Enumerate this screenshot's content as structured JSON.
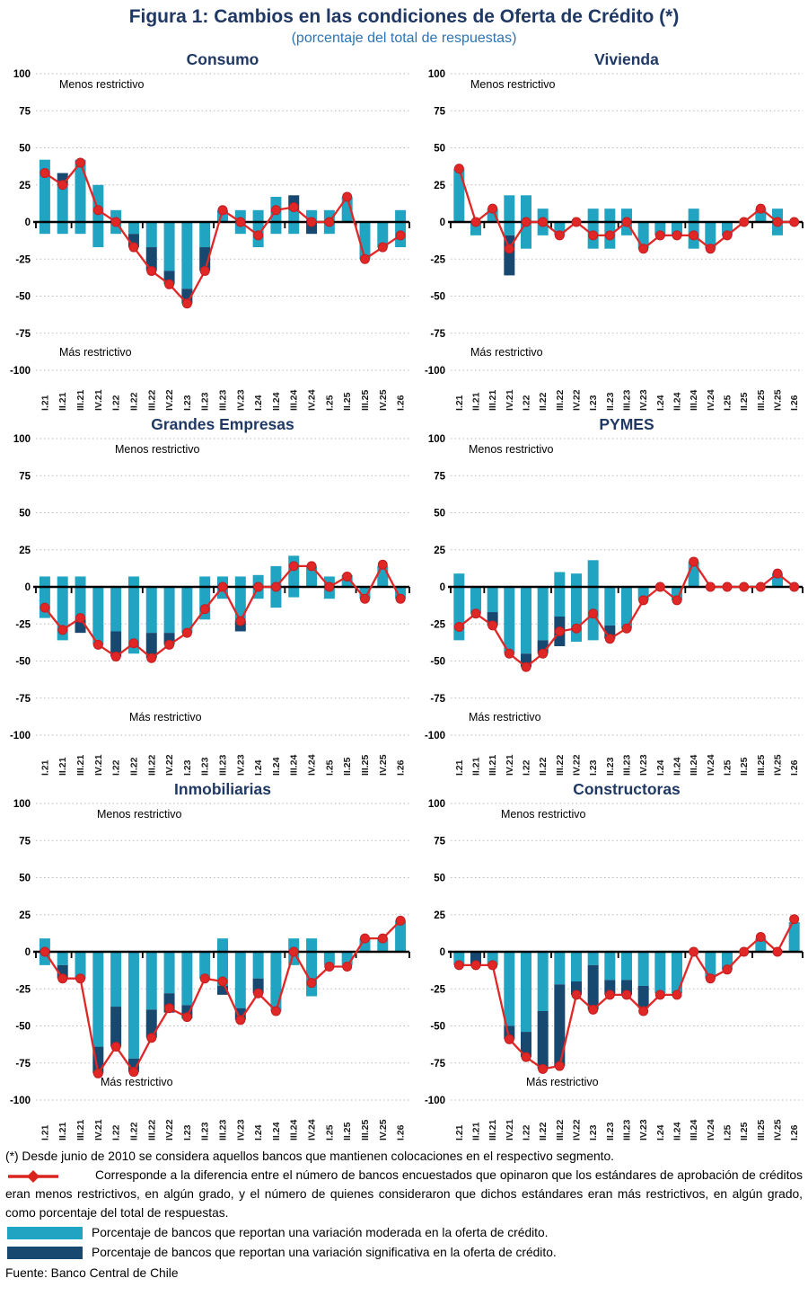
{
  "header": {
    "title": "Figura 1: Cambios en las condiciones de Oferta de Crédito (*)",
    "subtitle": "(porcentaje del total de respuestas)"
  },
  "axis": {
    "y_ticks": [
      100,
      75,
      50,
      25,
      0,
      -25,
      -50,
      -75,
      -100
    ],
    "menos_label": "Menos restrictivo",
    "mas_label": "Más restrictivo"
  },
  "colors": {
    "moderate_teal": "#20A4C2",
    "significant_navy": "#17486F",
    "net_red": "#E12726",
    "marker_edge_red": "#C11F22",
    "title_navy": "#1F3864",
    "subtitle_blue": "#2E74B5",
    "gridline_gray": "#BBBBBB"
  },
  "chart_data": {
    "type": "bar",
    "note": "stacked bars (moderate teal + significant navy, above and below zero) with red net-difference line, values in percent of responses",
    "ylim": [
      -100,
      100
    ],
    "categories": [
      "I.21",
      "II.21",
      "III.21",
      "IV.21",
      "I.22",
      "II.22",
      "III.22",
      "IV.22",
      "I.23",
      "II.23",
      "III.23",
      "IV.23",
      "I.24",
      "II.24",
      "III.24",
      "IV.24",
      "I.25",
      "II.25",
      "III.25",
      "IV.25",
      "I.26"
    ],
    "charts": [
      {
        "title": "Consumo",
        "moderate_pos": [
          42,
          25,
          42,
          25,
          8,
          0,
          0,
          0,
          0,
          0,
          8,
          8,
          8,
          17,
          8,
          8,
          8,
          17,
          0,
          0,
          8
        ],
        "significant_pos": [
          0,
          8,
          0,
          0,
          0,
          0,
          0,
          0,
          0,
          0,
          0,
          0,
          0,
          0,
          10,
          0,
          0,
          0,
          0,
          0,
          0
        ],
        "moderate_neg": [
          -8,
          -8,
          -8,
          -17,
          -8,
          -8,
          -17,
          -33,
          -45,
          -17,
          0,
          -8,
          -17,
          -8,
          -8,
          0,
          -8,
          0,
          -25,
          -17,
          -17
        ],
        "significant_neg": [
          0,
          0,
          0,
          0,
          0,
          -9,
          -16,
          -9,
          -10,
          -16,
          0,
          0,
          0,
          0,
          0,
          -8,
          0,
          0,
          0,
          0,
          0
        ],
        "net": [
          33,
          25,
          40,
          8,
          0,
          -17,
          -33,
          -42,
          -55,
          -33,
          8,
          0,
          -9,
          8,
          10,
          0,
          0,
          17,
          -25,
          -17,
          -9
        ]
      },
      {
        "title": "Vivienda",
        "moderate_pos": [
          36,
          0,
          9,
          18,
          18,
          9,
          0,
          0,
          9,
          9,
          9,
          0,
          0,
          0,
          9,
          0,
          0,
          0,
          9,
          9,
          0
        ],
        "significant_pos": [
          0,
          0,
          0,
          0,
          0,
          0,
          0,
          0,
          0,
          0,
          0,
          0,
          0,
          0,
          0,
          0,
          0,
          0,
          0,
          0,
          0
        ],
        "moderate_neg": [
          0,
          -9,
          0,
          -9,
          -18,
          -9,
          -9,
          0,
          -18,
          -18,
          -9,
          -18,
          -9,
          -9,
          -18,
          -18,
          -9,
          0,
          0,
          -9,
          0
        ],
        "significant_neg": [
          0,
          0,
          0,
          -27,
          0,
          0,
          0,
          0,
          0,
          0,
          0,
          0,
          0,
          0,
          0,
          0,
          0,
          0,
          0,
          0,
          0
        ],
        "net": [
          36,
          0,
          9,
          -18,
          0,
          0,
          -9,
          0,
          -9,
          -9,
          0,
          -18,
          -9,
          -9,
          -9,
          -18,
          -9,
          0,
          9,
          0,
          0
        ]
      },
      {
        "title": "Grandes Empresas",
        "moderate_pos": [
          7,
          7,
          7,
          0,
          0,
          7,
          0,
          0,
          0,
          7,
          7,
          7,
          8,
          14,
          21,
          14,
          7,
          8,
          0,
          14,
          0
        ],
        "significant_pos": [
          0,
          0,
          0,
          0,
          0,
          0,
          0,
          0,
          0,
          0,
          0,
          0,
          0,
          0,
          0,
          0,
          0,
          0,
          0,
          0,
          0
        ],
        "moderate_neg": [
          -21,
          -36,
          -22,
          -39,
          -30,
          -45,
          -31,
          -31,
          -31,
          -22,
          -8,
          -23,
          -8,
          -14,
          -7,
          0,
          -8,
          0,
          -8,
          0,
          -8
        ],
        "significant_neg": [
          0,
          0,
          -9,
          0,
          -17,
          0,
          -17,
          -8,
          0,
          0,
          0,
          -7,
          0,
          0,
          0,
          0,
          0,
          0,
          0,
          0,
          0
        ],
        "net": [
          -14,
          -29,
          -21,
          -39,
          -47,
          -38,
          -48,
          -39,
          -31,
          -15,
          0,
          -23,
          0,
          0,
          14,
          14,
          0,
          7,
          -8,
          15,
          -8
        ]
      },
      {
        "title": "PYMES",
        "moderate_pos": [
          9,
          0,
          0,
          0,
          0,
          0,
          10,
          9,
          18,
          0,
          0,
          0,
          0,
          0,
          17,
          0,
          0,
          0,
          0,
          9,
          0
        ],
        "significant_pos": [
          0,
          0,
          0,
          0,
          0,
          0,
          0,
          0,
          0,
          0,
          0,
          0,
          0,
          0,
          0,
          0,
          0,
          0,
          0,
          0,
          0
        ],
        "moderate_neg": [
          -36,
          -18,
          -17,
          -45,
          -45,
          -36,
          -20,
          -37,
          -36,
          -26,
          -28,
          -9,
          0,
          -9,
          0,
          0,
          0,
          0,
          0,
          0,
          0
        ],
        "significant_neg": [
          0,
          0,
          -9,
          0,
          -9,
          -9,
          -20,
          0,
          0,
          -9,
          0,
          0,
          0,
          0,
          0,
          0,
          0,
          0,
          0,
          0,
          0
        ],
        "net": [
          -27,
          -18,
          -26,
          -45,
          -54,
          -45,
          -30,
          -28,
          -18,
          -35,
          -28,
          -9,
          0,
          -9,
          17,
          0,
          0,
          0,
          0,
          9,
          0
        ]
      },
      {
        "title": "Inmobiliarias",
        "moderate_pos": [
          9,
          0,
          0,
          0,
          0,
          0,
          0,
          0,
          0,
          0,
          9,
          0,
          0,
          0,
          9,
          9,
          0,
          0,
          9,
          9,
          21
        ],
        "significant_pos": [
          0,
          0,
          0,
          0,
          0,
          0,
          0,
          0,
          0,
          0,
          0,
          0,
          0,
          0,
          0,
          0,
          0,
          0,
          0,
          0,
          0
        ],
        "moderate_neg": [
          -9,
          -9,
          -18,
          -64,
          -37,
          -72,
          -39,
          -28,
          -36,
          -18,
          -23,
          -38,
          -18,
          -40,
          -9,
          -30,
          -9,
          -9,
          0,
          0,
          0
        ],
        "significant_neg": [
          0,
          -9,
          0,
          -18,
          -27,
          -9,
          -19,
          -13,
          -9,
          0,
          -6,
          -8,
          -10,
          0,
          0,
          0,
          0,
          0,
          0,
          0,
          0
        ],
        "net": [
          0,
          -18,
          -18,
          -82,
          -64,
          -81,
          -58,
          -38,
          -44,
          -18,
          -20,
          -46,
          -28,
          -40,
          0,
          -21,
          -10,
          -10,
          9,
          9,
          21
        ]
      },
      {
        "title": "Constructoras",
        "moderate_pos": [
          0,
          0,
          0,
          0,
          0,
          0,
          0,
          0,
          0,
          0,
          0,
          0,
          0,
          0,
          0,
          0,
          0,
          0,
          9,
          0,
          20
        ],
        "significant_pos": [
          0,
          0,
          0,
          0,
          0,
          0,
          0,
          0,
          0,
          0,
          0,
          0,
          0,
          0,
          0,
          0,
          0,
          0,
          0,
          0,
          0
        ],
        "moderate_neg": [
          -9,
          0,
          -9,
          -50,
          -54,
          -40,
          -22,
          -20,
          -9,
          -19,
          -19,
          -23,
          -28,
          -28,
          0,
          -18,
          -12,
          0,
          0,
          0,
          0
        ],
        "significant_neg": [
          0,
          -9,
          0,
          -9,
          -17,
          -39,
          -55,
          -9,
          -30,
          -10,
          -10,
          -15,
          0,
          0,
          0,
          0,
          0,
          0,
          0,
          0,
          0
        ],
        "net": [
          -9,
          -9,
          -9,
          -59,
          -71,
          -79,
          -77,
          -29,
          -39,
          -29,
          -29,
          -40,
          -29,
          -29,
          0,
          -18,
          -12,
          0,
          10,
          0,
          22
        ]
      }
    ]
  },
  "footer": {
    "footnote1": "(*) Desde junio de 2010 se considera aquellos bancos que mantienen colocaciones en el respectivo segmento.",
    "footnote2": "Corresponde a la diferencia entre el número de bancos encuestados que opinaron que los estándares de aprobación de créditos eran menos restrictivos, en algún grado, y el número de quienes consideraron que dichos estándares eran más restrictivos, en algún grado, como porcentaje del total de respuestas.",
    "legend_moderate": "Porcentaje de bancos que reportan una variación moderada en la oferta de crédito.",
    "legend_significant": "Porcentaje de bancos que reportan una variación significativa en la oferta de crédito.",
    "fuente": "Fuente: Banco Central de Chile"
  }
}
